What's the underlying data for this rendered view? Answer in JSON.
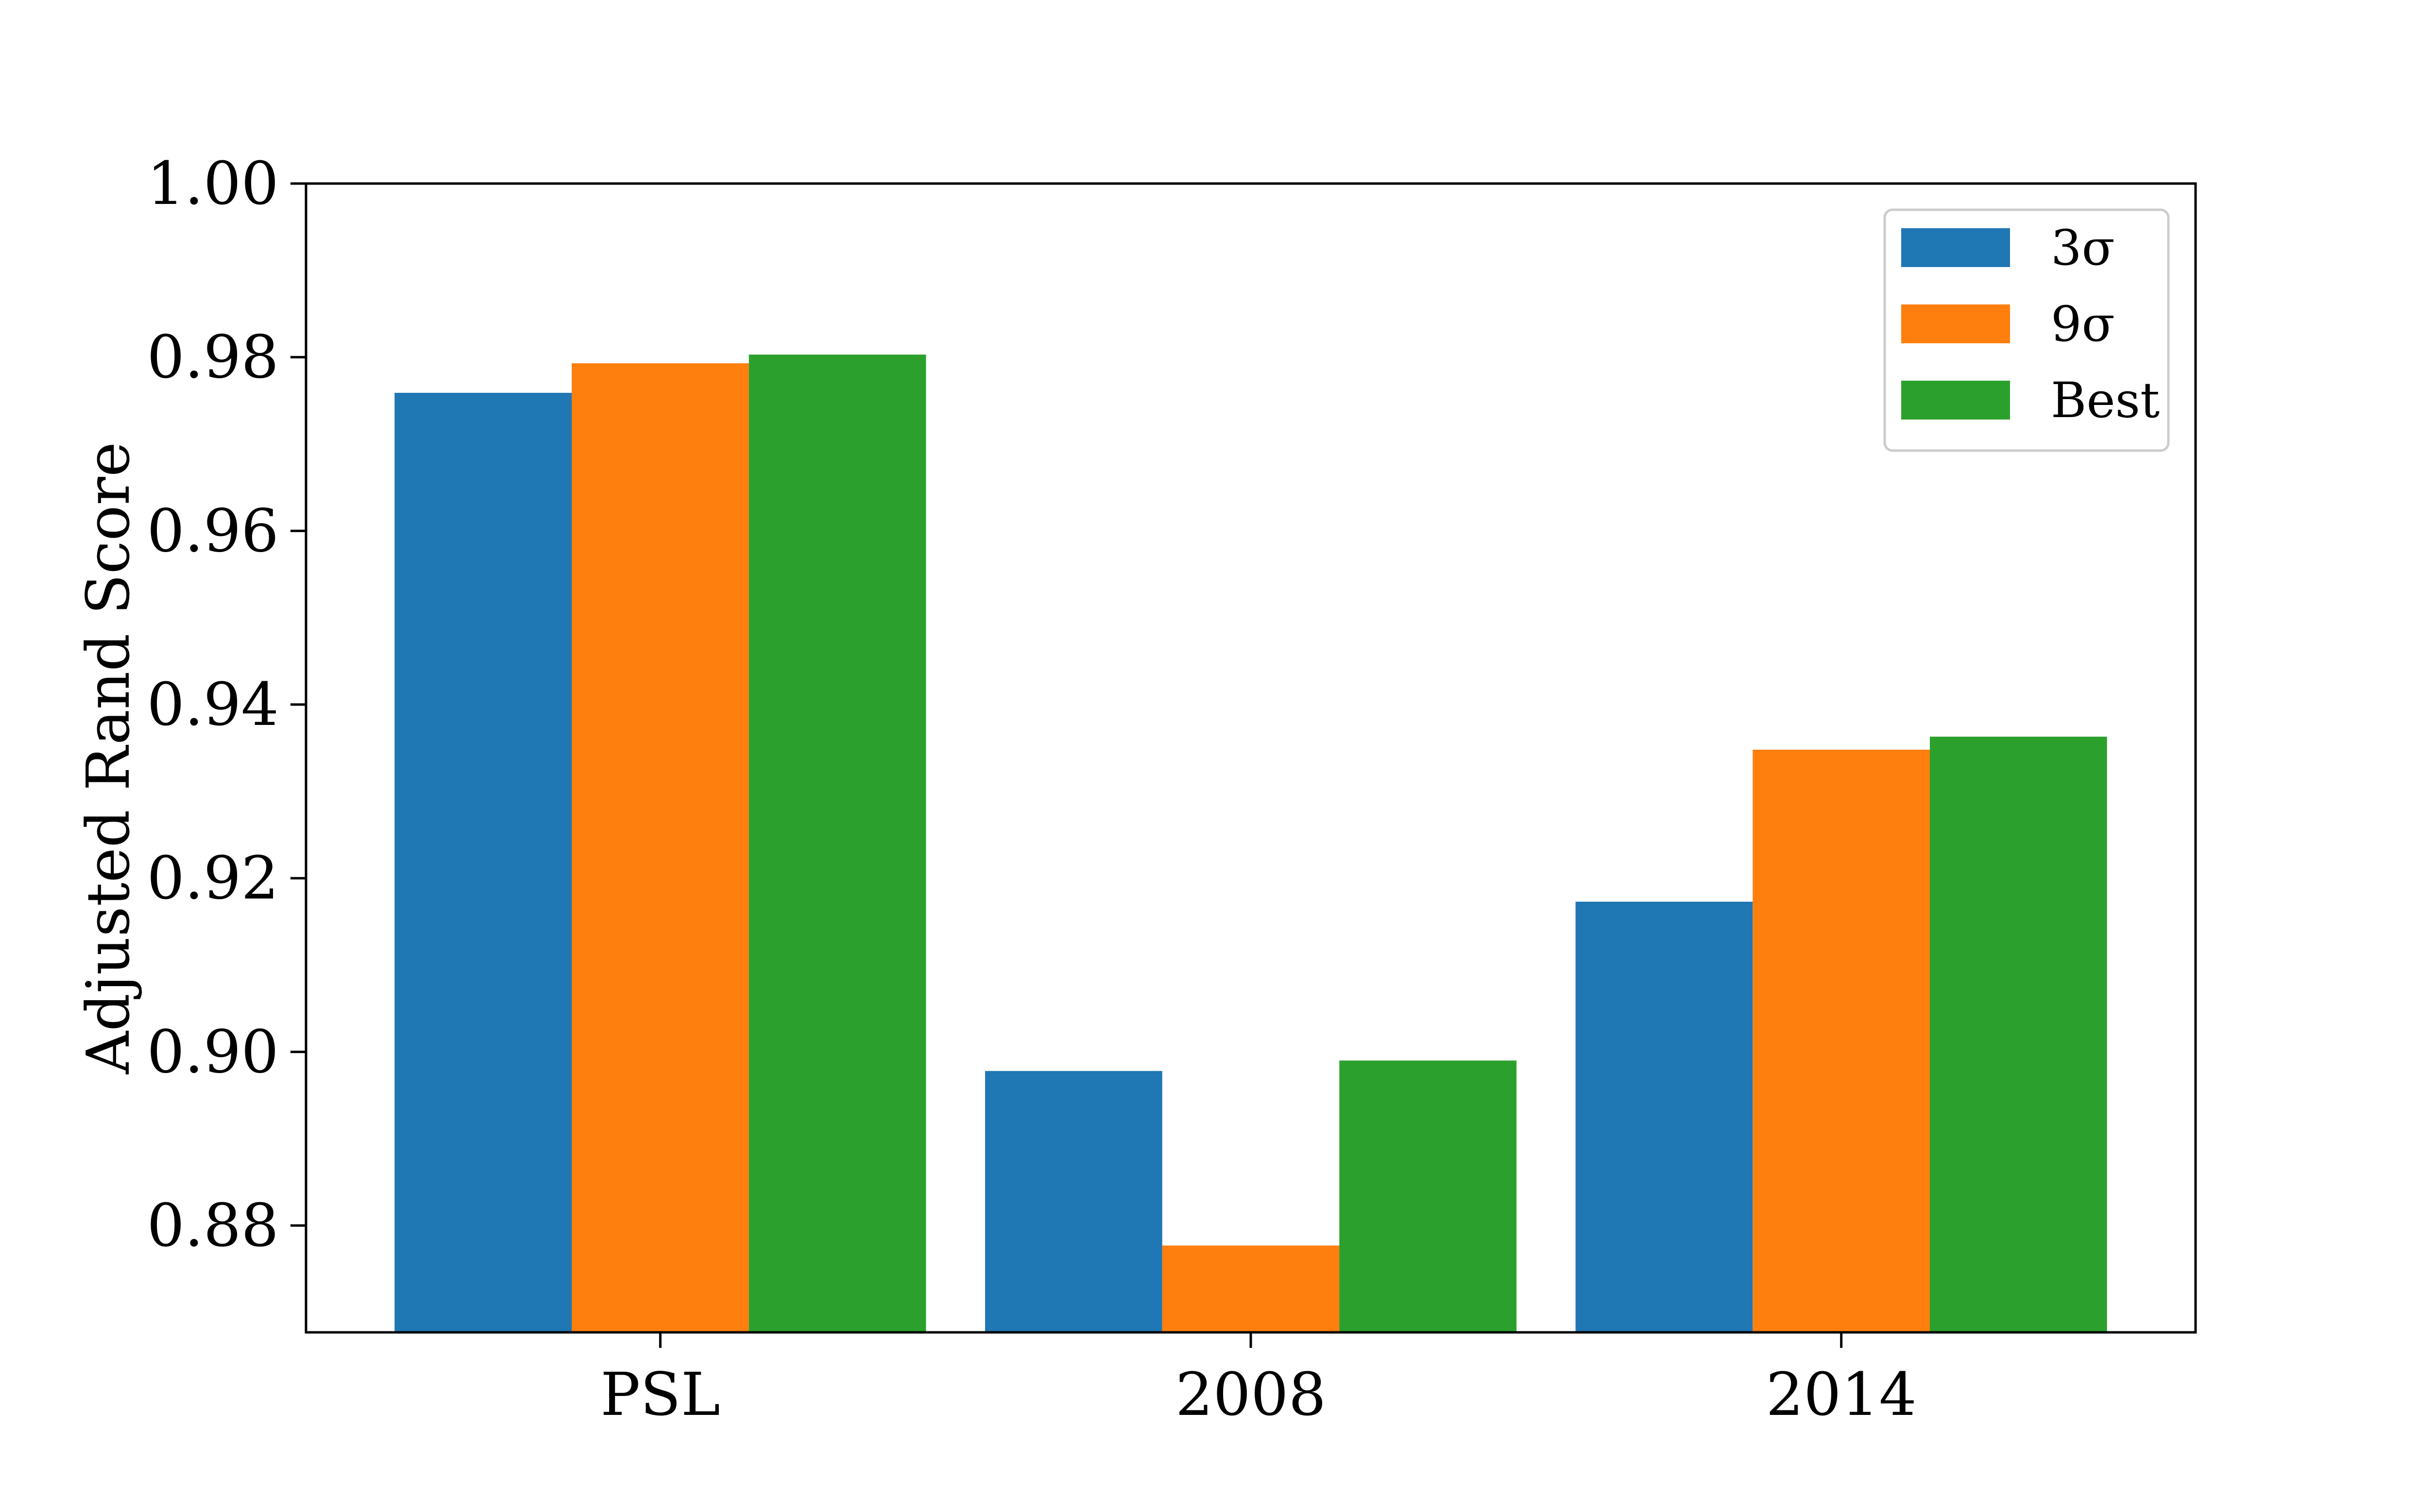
{
  "chart_data": {
    "type": "bar",
    "title": "",
    "xlabel": "",
    "ylabel": "Adjusted Rand Score",
    "categories": [
      "PSL",
      "2008",
      "2014"
    ],
    "series": [
      {
        "name": "3σ",
        "color": "#1f77b4",
        "values": [
          0.9759,
          0.8978,
          0.9173
        ]
      },
      {
        "name": "9σ",
        "color": "#ff7f0e",
        "values": [
          0.9793,
          0.8777,
          0.9348
        ]
      },
      {
        "name": "Best",
        "color": "#2ca02c",
        "values": [
          0.9803,
          0.899,
          0.9363
        ]
      }
    ],
    "ylim": [
      0.8677,
      1.0
    ],
    "yticks": [
      0.88,
      0.9,
      0.92,
      0.94,
      0.96,
      0.98,
      1.0
    ],
    "ytick_labels": [
      "0.88",
      "0.90",
      "0.92",
      "0.94",
      "0.96",
      "0.98",
      "1.00"
    ],
    "grid": false,
    "legend_position": "top-right"
  }
}
